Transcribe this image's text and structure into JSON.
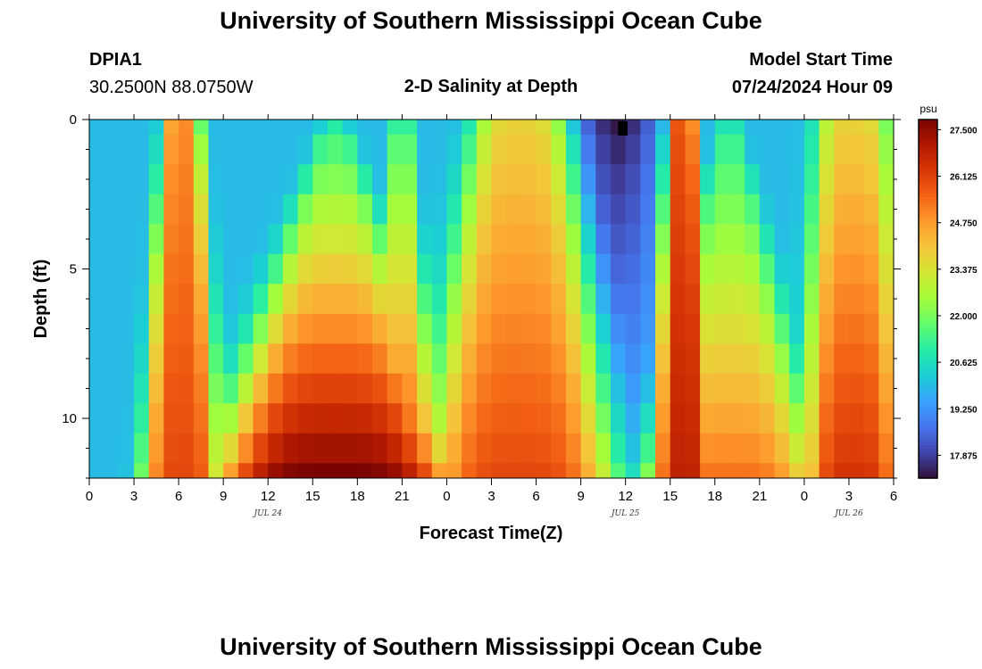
{
  "header": {
    "title": "University of Southern Mississippi Ocean Cube",
    "station": "DPIA1",
    "coords": "30.2500N  88.0750W",
    "subtitle": "2-D Salinity at Depth",
    "start_label": "Model Start Time",
    "start_value": "07/24/2024 Hour 09"
  },
  "footer": {
    "title": "University of Southern Mississippi Ocean Cube"
  },
  "colors": {
    "colormap": [
      "#30123b",
      "#4145ab",
      "#4675ed",
      "#39a2fc",
      "#1bcfd4",
      "#24eca6",
      "#61fc6c",
      "#a4fc3b",
      "#d1e834",
      "#f3c63a",
      "#fe9b2d",
      "#f36315",
      "#d93806",
      "#b11901",
      "#7a0402"
    ],
    "marker": "#000000"
  },
  "chart_data": {
    "type": "heatmap",
    "title": "2-D Salinity at Depth",
    "xlabel": "Forecast Time(Z)",
    "ylabel": "Depth (ft)",
    "x_hours_from_jul24_00z": {
      "start": 0,
      "end": 54,
      "step": 1
    },
    "xtick_hours": [
      0,
      3,
      6,
      9,
      12,
      15,
      18,
      21,
      24,
      27,
      30,
      33,
      36,
      39,
      42,
      45,
      48,
      51,
      54
    ],
    "xtick_labels": [
      "0",
      "3",
      "6",
      "9",
      "12",
      "15",
      "18",
      "21",
      "0",
      "3",
      "6",
      "9",
      "12",
      "15",
      "18",
      "21",
      "0",
      "3",
      "6"
    ],
    "date_labels": [
      {
        "hour": 12,
        "text": "JUL 24"
      },
      {
        "hour": 36,
        "text": "JUL 25"
      },
      {
        "hour": 51,
        "text": "JUL 26"
      }
    ],
    "ylim": [
      0,
      12
    ],
    "yticks": [
      0,
      5,
      10
    ],
    "depth_levels_ft": [
      0,
      1,
      2,
      3,
      4,
      5,
      6,
      7,
      8,
      9,
      10,
      11,
      12
    ],
    "colorbar": {
      "unit": "psu",
      "range": [
        17.2,
        27.8
      ],
      "ticks": [
        27.5,
        26.125,
        24.75,
        23.375,
        22.0,
        20.625,
        19.25,
        17.875
      ],
      "tick_labels": [
        "27.500",
        "26.125",
        "24.750",
        "23.375",
        "22.000",
        "20.625",
        "19.250",
        "17.875"
      ]
    },
    "salinity_surface": {
      "fresh_background_psu": 19.9,
      "bottom_freshening_psu_per_ft": 0.12,
      "saline_pulses": [
        {
          "center_hour": 6.2,
          "half_width_top_h": 1.1,
          "half_width_bottom_h": 2.2,
          "depth_scale_ft": 20,
          "peak_top_psu": 25.0,
          "peak_bottom_psu": 26.0
        },
        {
          "center_hour": 16.5,
          "half_width_top_h": 0.8,
          "half_width_bottom_h": 7.0,
          "depth_scale_ft": 6,
          "peak_top_psu": 21.0,
          "peak_bottom_psu": 27.8
        },
        {
          "center_hour": 21.0,
          "half_width_top_h": 0.6,
          "half_width_bottom_h": 2.0,
          "depth_scale_ft": 6,
          "peak_top_psu": 21.5,
          "peak_bottom_psu": 26.0
        },
        {
          "center_hour": 29.0,
          "half_width_top_h": 2.7,
          "half_width_bottom_h": 5.5,
          "depth_scale_ft": 10,
          "peak_top_psu": 23.8,
          "peak_bottom_psu": 26.0
        },
        {
          "center_hour": 39.8,
          "half_width_top_h": 0.9,
          "half_width_bottom_h": 1.6,
          "depth_scale_ft": 20,
          "peak_top_psu": 26.1,
          "peak_bottom_psu": 26.9
        },
        {
          "center_hour": 43.0,
          "half_width_top_h": 0.6,
          "half_width_bottom_h": 5.0,
          "depth_scale_ft": 5,
          "peak_top_psu": 21.0,
          "peak_bottom_psu": 25.3
        },
        {
          "center_hour": 51.3,
          "half_width_top_h": 2.1,
          "half_width_bottom_h": 2.9,
          "depth_scale_ft": 12,
          "peak_top_psu": 23.8,
          "peak_bottom_psu": 26.4
        }
      ],
      "fresh_core": {
        "center_hour": 35.5,
        "half_width_h": 2.7,
        "depth_scale_ft": 9,
        "drop_psu": 2.6
      },
      "missing_cell": {
        "hour": 35.5,
        "depth_ft": 0.3
      }
    }
  }
}
